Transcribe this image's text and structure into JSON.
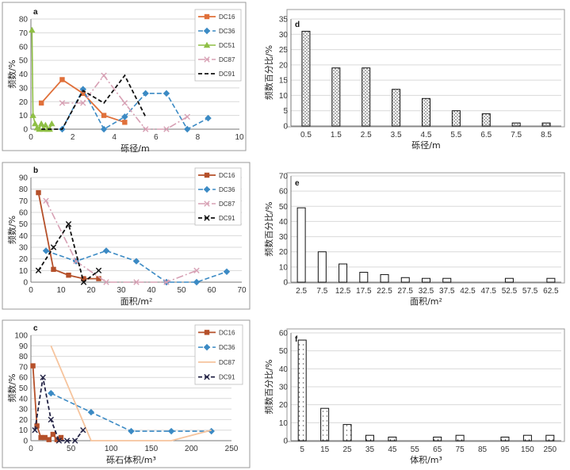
{
  "colors": {
    "DC16": "#e0703a",
    "DC36": "#3b8ac4",
    "DC51": "#8fbf45",
    "DC87": "#d7a0b4",
    "DC91": "#111111",
    "DC16_b": "#b5502a",
    "DC87_c": "#f6c49d",
    "DC91_c": "#222244"
  },
  "chart_data": [
    {
      "panel": "a",
      "type": "line",
      "xlabel": "砾径/m",
      "ylabel": "频数/%",
      "xlim": [
        0,
        10
      ],
      "ylim": [
        0,
        80
      ],
      "xticks": [
        "0",
        "2",
        "4",
        "6",
        "8",
        "10"
      ],
      "yticks": [
        "0",
        "10",
        "20",
        "30",
        "40",
        "50",
        "60",
        "70",
        "80"
      ],
      "series": [
        {
          "name": "DC16",
          "style": "DC16",
          "marker": "square",
          "x": [
            0.5,
            1.5,
            2.5,
            3.5,
            4.5
          ],
          "y": [
            19,
            36,
            26,
            10,
            5
          ]
        },
        {
          "name": "DC36",
          "style": "DC36",
          "marker": "diamond",
          "x": [
            1.5,
            2.5,
            3.5,
            4.5,
            5.5,
            6.5,
            7.5,
            8.5
          ],
          "y": [
            0,
            29,
            0,
            9,
            26,
            26,
            0,
            8
          ]
        },
        {
          "name": "DC51",
          "style": "DC51",
          "marker": "triangle",
          "x": [
            0.05,
            0.1,
            0.2,
            0.3,
            0.4,
            0.5,
            0.6,
            0.7,
            0.8,
            0.9,
            1.0
          ],
          "y": [
            72,
            10,
            4,
            1,
            0,
            4,
            0,
            3,
            0,
            0,
            4
          ]
        },
        {
          "name": "DC87",
          "style": "DC87",
          "marker": "cross",
          "x": [
            1.5,
            2.5,
            3.5,
            4.5,
            5.5,
            6.5,
            7.5
          ],
          "y": [
            19,
            19,
            39,
            19,
            0,
            0,
            9
          ]
        },
        {
          "name": "DC91",
          "style": "DC91",
          "marker": "none",
          "x": [
            0.5,
            1.5,
            2.5,
            3.5,
            4.5,
            5.5
          ],
          "y": [
            0,
            0,
            28,
            19,
            39,
            9
          ]
        }
      ]
    },
    {
      "panel": "b",
      "type": "line",
      "xlabel": "面积/m²",
      "ylabel": "频数/%",
      "xlim": [
        0,
        70
      ],
      "ylim": [
        0,
        90
      ],
      "xticks": [
        "0",
        "10",
        "20",
        "30",
        "40",
        "50",
        "60",
        "70"
      ],
      "yticks": [
        "0",
        "10",
        "20",
        "30",
        "40",
        "50",
        "60",
        "70",
        "80",
        "90"
      ],
      "series": [
        {
          "name": "DC16",
          "style": "DC16_b",
          "marker": "square",
          "x": [
            2.5,
            7.5,
            12.5,
            17.5,
            22.5
          ],
          "y": [
            77,
            11,
            6,
            3,
            3
          ]
        },
        {
          "name": "DC36",
          "style": "DC36",
          "marker": "diamond",
          "x": [
            5,
            15,
            25,
            35,
            45,
            55,
            65
          ],
          "y": [
            27,
            18,
            27,
            18,
            0,
            0,
            9
          ]
        },
        {
          "name": "DC87",
          "style": "DC87",
          "marker": "cross",
          "x": [
            5,
            15,
            25,
            35,
            45,
            55
          ],
          "y": [
            70,
            18,
            0,
            0,
            0,
            10
          ]
        },
        {
          "name": "DC91",
          "style": "DC91",
          "marker": "cross",
          "x": [
            2.5,
            7.5,
            12.5,
            17.5,
            22.5
          ],
          "y": [
            10,
            30,
            50,
            0,
            10
          ]
        }
      ]
    },
    {
      "panel": "c",
      "type": "line",
      "xlabel": "砾石体积/m³",
      "ylabel": "频数/%",
      "xlim": [
        0,
        250
      ],
      "ylim": [
        0,
        100
      ],
      "xticks": [
        "0",
        "50",
        "100",
        "150",
        "200",
        "250"
      ],
      "yticks": [
        "0",
        "10",
        "20",
        "30",
        "40",
        "50",
        "60",
        "70",
        "80",
        "90",
        "100"
      ],
      "series": [
        {
          "name": "DC16",
          "style": "DC16_b",
          "marker": "square",
          "x": [
            2.5,
            7.5,
            12.5,
            17.5,
            22.5,
            27.5,
            32.5,
            37.5
          ],
          "y": [
            71,
            14,
            3,
            3,
            1,
            6,
            1,
            3
          ]
        },
        {
          "name": "DC36",
          "style": "DC36",
          "marker": "diamond",
          "x": [
            25,
            75,
            125,
            175,
            225
          ],
          "y": [
            45,
            27,
            9,
            9,
            9
          ]
        },
        {
          "name": "DC87",
          "style": "DC87_c",
          "marker": "none",
          "x": [
            25,
            75,
            125,
            175,
            225
          ],
          "y": [
            90,
            0,
            0,
            0,
            10
          ]
        },
        {
          "name": "DC91",
          "style": "DC91_c",
          "marker": "cross",
          "x": [
            5,
            15,
            25,
            35,
            45,
            55,
            65
          ],
          "y": [
            10,
            60,
            20,
            0,
            0,
            0,
            10
          ]
        }
      ]
    },
    {
      "panel": "d",
      "type": "bar",
      "fill": "dots",
      "xlabel": "砾径/m",
      "ylabel": "频数百分比/%",
      "ylim": [
        0,
        35
      ],
      "yticks": [
        "0",
        "5",
        "10",
        "15",
        "20",
        "25",
        "30",
        "35"
      ],
      "categories": [
        "0.5",
        "1.5",
        "2.5",
        "3.5",
        "4.5",
        "5.5",
        "6.5",
        "7.5",
        "8.5"
      ],
      "values": [
        31,
        19,
        19,
        12,
        9,
        5,
        4,
        1,
        1
      ]
    },
    {
      "panel": "e",
      "type": "bar",
      "fill": "none",
      "xlabel": "面积/m²",
      "ylabel": "频数百分比/%",
      "ylim": [
        0,
        70
      ],
      "yticks": [
        "0",
        "10",
        "20",
        "30",
        "40",
        "50",
        "60",
        "70"
      ],
      "categories": [
        "2.5",
        "7.5",
        "12.5",
        "17.5",
        "22.5",
        "27.5",
        "32.5",
        "37.5",
        "42.5",
        "47.5",
        "52.5",
        "57.5",
        "62.5"
      ],
      "values": [
        49,
        20,
        12,
        6.5,
        5,
        3,
        2.5,
        2.5,
        0,
        0,
        2.5,
        0,
        2.5
      ]
    },
    {
      "panel": "f",
      "type": "bar",
      "fill": "dots-sparse",
      "xlabel": "体积/m³",
      "ylabel": "频数百分比/%",
      "ylim": [
        0,
        60
      ],
      "yticks": [
        "0",
        "10",
        "20",
        "30",
        "40",
        "50",
        "60"
      ],
      "categories": [
        "5",
        "15",
        "25",
        "35",
        "45",
        "55",
        "65",
        "75",
        "85",
        "95",
        "150",
        "250"
      ],
      "values": [
        56,
        18,
        9,
        3,
        2,
        0,
        2,
        3,
        0,
        2,
        3,
        3
      ]
    }
  ]
}
